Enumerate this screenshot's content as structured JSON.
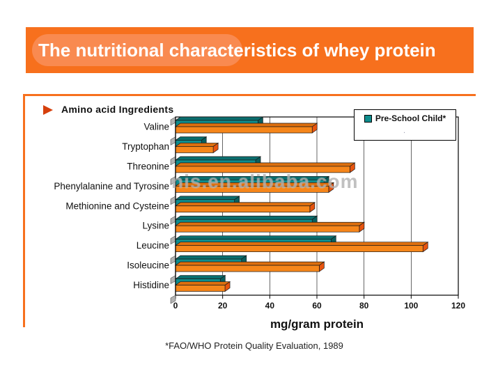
{
  "header": {
    "title": "The nutritional characteristics of whey protein",
    "bg_color": "#F7701D",
    "highlight_color": "#F98A50"
  },
  "section": {
    "heading": "Amino acid Ingredients",
    "bullet_color": "#D6400C",
    "border_color": "#F7701D"
  },
  "legend": {
    "items": [
      {
        "label": "Pre-School Child*",
        "color": "#0E8D8D"
      }
    ],
    "faded_second_item": "."
  },
  "watermark": {
    "text": "nis.en.alibaba.com"
  },
  "chart_data": {
    "type": "bar",
    "orientation": "horizontal",
    "style": "3d",
    "title": "",
    "categories": [
      "Valine",
      "Tryptophan",
      "Threonine",
      "Phenylalanine and Tyrosine",
      "Methionine and Cysteine",
      "Lysine",
      "Leucine",
      "Isoleucine",
      "Histidine"
    ],
    "series": [
      {
        "name": "Pre-School Child*",
        "color": "#0E8D8D",
        "top_color": "#0A6E6E",
        "cap_color": "#085F5F",
        "values": [
          35,
          11,
          34,
          63,
          25,
          58,
          66,
          28,
          19
        ]
      },
      {
        "name": "",
        "color": "#F6861A",
        "top_color": "#DD6F0E",
        "cap_color": "#E8540E",
        "values": [
          58,
          16,
          74,
          65,
          57,
          78,
          105,
          61,
          21
        ]
      }
    ],
    "xlabel": "mg/gram protein",
    "xlim": [
      0,
      120
    ],
    "xticks": [
      0,
      20,
      40,
      60,
      80,
      100,
      120
    ],
    "grid": true,
    "legend_position": "top-right"
  },
  "footer": {
    "note": "*FAO/WHO Protein Quality Evaluation, 1989"
  }
}
